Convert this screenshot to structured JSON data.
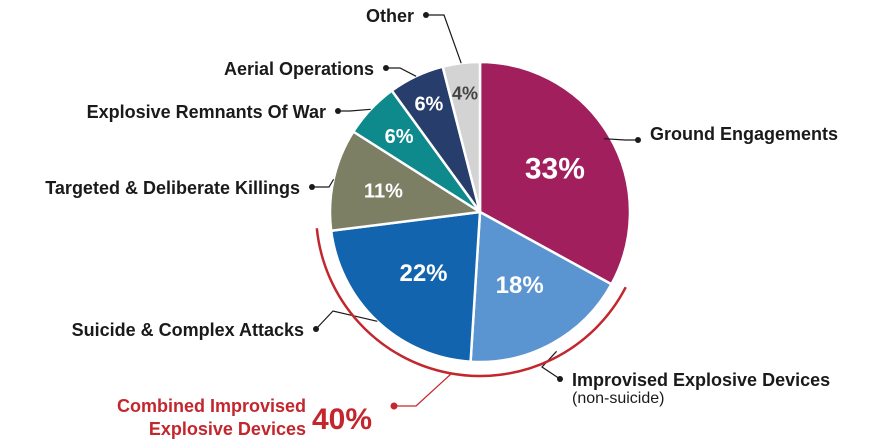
{
  "chart_data": {
    "type": "pie",
    "start_angle_deg": 0,
    "direction": "clockwise",
    "slices": [
      {
        "label": "Ground Engagements",
        "sublabel": "",
        "value": 33,
        "value_label": "33%",
        "color": "#a21f5e",
        "label_color": "#ffffff"
      },
      {
        "label": "Improvised Explosive Devices",
        "sublabel": "(non-suicide)",
        "value": 18,
        "value_label": "18%",
        "color": "#5b95d1",
        "label_color": "#ffffff"
      },
      {
        "label": "Suicide & Complex Attacks",
        "sublabel": "",
        "value": 22,
        "value_label": "22%",
        "color": "#1164ad",
        "label_color": "#ffffff"
      },
      {
        "label": "Targeted & Deliberate Killings",
        "sublabel": "",
        "value": 11,
        "value_label": "11%",
        "color": "#7d7f64",
        "label_color": "#ffffff"
      },
      {
        "label": "Explosive Remnants Of War",
        "sublabel": "",
        "value": 6,
        "value_label": "6%",
        "color": "#0e8a8c",
        "label_color": "#ffffff"
      },
      {
        "label": "Aerial Operations",
        "sublabel": "",
        "value": 6,
        "value_label": "6%",
        "color": "#273d6b",
        "label_color": "#ffffff"
      },
      {
        "label": "Other",
        "sublabel": "",
        "value": 4,
        "value_label": "4%",
        "color": "#d3d3d3",
        "label_color": "#444444"
      }
    ],
    "combined": {
      "label_line1": "Combined Improvised",
      "label_line2": "Explosive Devices",
      "value": 40,
      "value_label": "40%",
      "color": "#c3272d",
      "includes": [
        "Improvised Explosive Devices",
        "Suicide & Complex Attacks"
      ]
    }
  }
}
